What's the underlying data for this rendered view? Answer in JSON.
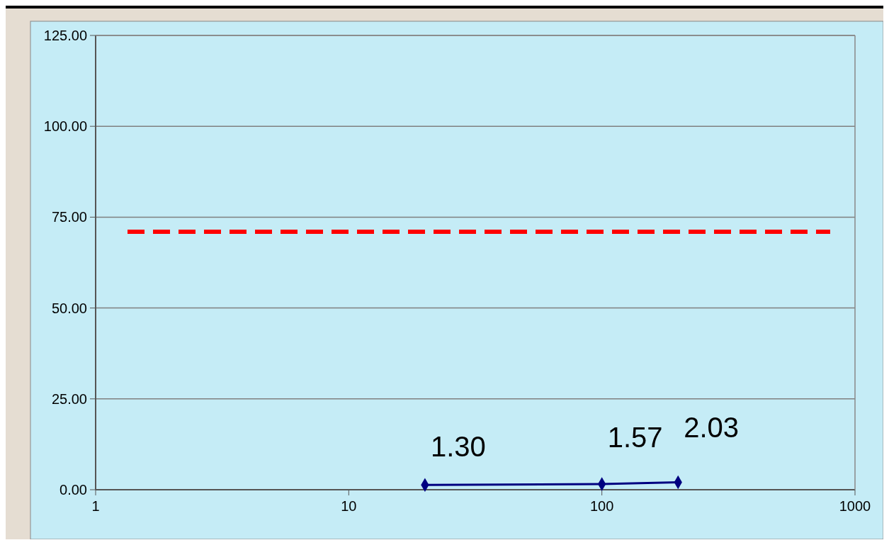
{
  "chart_data": {
    "type": "line",
    "log": "x",
    "x": [
      20,
      100,
      200
    ],
    "series": [
      {
        "color": "#000080",
        "values": [
          1.3,
          1.57,
          2.03
        ],
        "value_labels": [
          "1.30",
          "1.57",
          "2.03"
        ]
      }
    ],
    "xlim": [
      1,
      1000
    ],
    "xticks": [
      1,
      10,
      100,
      1000
    ],
    "ylim": [
      0,
      125
    ],
    "yticks": [
      {
        "value": 0,
        "label": "0.00"
      },
      {
        "value": 25,
        "label": "25.00"
      },
      {
        "value": 50,
        "label": "50.00"
      },
      {
        "value": 75,
        "label": "75.00"
      },
      {
        "value": 100,
        "label": "100.00"
      },
      {
        "value": 125,
        "label": "125.00"
      }
    ],
    "grid": "y",
    "marker": "diamond",
    "line_style": "solid",
    "ref_lines": [
      {
        "axis": "y",
        "value": 71,
        "color": "#ff0000",
        "line_style": "dashed"
      }
    ]
  }
}
